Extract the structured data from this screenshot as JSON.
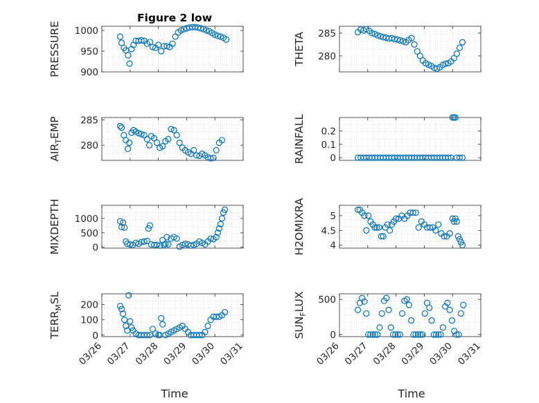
{
  "figure": {
    "title": "Figure 2 low"
  },
  "chart_data": [
    {
      "type": "scatter",
      "ylabel": "PRESSURE",
      "ylim": [
        900,
        1010
      ],
      "yticks": [
        900,
        950,
        1000
      ],
      "ytick_labels": [
        "900",
        "950",
        "1000"
      ],
      "xlim": [
        0,
        5
      ],
      "grid": true,
      "x": [
        0.65,
        0.7,
        0.78,
        0.85,
        0.93,
        0.98,
        1.05,
        1.12,
        1.2,
        1.3,
        1.4,
        1.5,
        1.6,
        1.7,
        1.8,
        1.9,
        2.0,
        2.1,
        2.2,
        2.3,
        2.4,
        2.5,
        2.6,
        2.7,
        2.8,
        2.9,
        3.0,
        3.1,
        3.2,
        3.3,
        3.4,
        3.5,
        3.6,
        3.7,
        3.8,
        3.9,
        4.0,
        4.1,
        4.2,
        4.3,
        4.4
      ],
      "y": [
        985,
        970,
        958,
        952,
        940,
        920,
        955,
        965,
        975,
        975,
        976,
        975,
        968,
        972,
        960,
        958,
        965,
        950,
        962,
        962,
        960,
        968,
        985,
        995,
        1000,
        1003,
        1005,
        1007,
        1008,
        1008,
        1007,
        1005,
        1003,
        1000,
        998,
        994,
        990,
        987,
        985,
        982,
        978
      ]
    },
    {
      "type": "scatter",
      "ylabel": "THETA",
      "ylim": [
        276.5,
        286.5
      ],
      "yticks": [
        280,
        285
      ],
      "ytick_labels": [
        "280",
        "285"
      ],
      "xlim": [
        0,
        5
      ],
      "grid": true,
      "x": [
        0.65,
        0.75,
        0.85,
        0.95,
        1.05,
        1.15,
        1.25,
        1.35,
        1.45,
        1.55,
        1.65,
        1.75,
        1.85,
        1.95,
        2.05,
        2.15,
        2.25,
        2.35,
        2.45,
        2.55,
        2.65,
        2.75,
        2.85,
        2.95,
        3.05,
        3.15,
        3.25,
        3.35,
        3.45,
        3.55,
        3.65,
        3.75,
        3.85,
        3.95,
        4.05,
        4.15,
        4.25,
        4.35
      ],
      "y": [
        285.2,
        285.8,
        285.6,
        285.9,
        285.5,
        285,
        284.8,
        284.5,
        284.3,
        284.1,
        284.0,
        283.8,
        283.9,
        283.7,
        283.6,
        283.4,
        283.2,
        283.0,
        283.5,
        283.9,
        282.5,
        281.0,
        280.0,
        279.0,
        278.4,
        278.1,
        277.8,
        277.4,
        277.2,
        277.5,
        278.0,
        278.3,
        278.4,
        278.8,
        279.5,
        280.5,
        281.8,
        283.0
      ]
    },
    {
      "type": "scatter",
      "ylabel": "AIR_TEMP",
      "ylim": [
        277,
        285.5
      ],
      "yticks": [
        280,
        285
      ],
      "ytick_labels": [
        "280",
        "285"
      ],
      "xlim": [
        0,
        5
      ],
      "grid": true,
      "x": [
        0.65,
        0.7,
        0.78,
        0.85,
        0.92,
        0.97,
        1.05,
        1.12,
        1.2,
        1.3,
        1.4,
        1.5,
        1.6,
        1.68,
        1.75,
        1.85,
        1.95,
        2.05,
        2.15,
        2.25,
        2.35,
        2.45,
        2.55,
        2.65,
        2.75,
        2.85,
        2.95,
        3.05,
        3.15,
        3.25,
        3.35,
        3.45,
        3.55,
        3.65,
        3.75,
        3.85,
        3.95,
        4.05,
        4.15,
        4.25
      ],
      "y": [
        283.8,
        283.5,
        282.0,
        281.0,
        279.3,
        280.5,
        282.5,
        283.0,
        282.7,
        282.4,
        282.2,
        282.0,
        281.2,
        280.0,
        281.8,
        281.4,
        280.5,
        279.5,
        279.8,
        280.8,
        281.2,
        283.2,
        283.0,
        282.0,
        280.5,
        279.5,
        279.0,
        278.6,
        278.3,
        279.0,
        278.0,
        277.9,
        278.3,
        278.0,
        277.6,
        277.4,
        277.5,
        279.0,
        280.5,
        281.0
      ]
    },
    {
      "type": "scatter",
      "ylabel": "RAINFALL",
      "ylim": [
        -0.02,
        0.3
      ],
      "yticks": [
        0,
        0.1,
        0.2
      ],
      "ytick_labels": [
        "0",
        "0.1",
        "0.2"
      ],
      "xlim": [
        0,
        5
      ],
      "grid": true,
      "x": [
        0.65,
        0.75,
        0.85,
        0.95,
        1.05,
        1.15,
        1.25,
        1.35,
        1.45,
        1.55,
        1.65,
        1.75,
        1.85,
        1.95,
        2.05,
        2.15,
        2.25,
        2.35,
        2.45,
        2.55,
        2.65,
        2.75,
        2.85,
        2.95,
        3.05,
        3.15,
        3.25,
        3.35,
        3.45,
        3.55,
        3.65,
        3.75,
        3.85,
        3.95,
        4.0,
        4.05,
        4.1,
        4.15,
        4.25,
        4.35
      ],
      "y": [
        0,
        0,
        0,
        0,
        0,
        0,
        0,
        0,
        0,
        0,
        0,
        0,
        0,
        0,
        0,
        0,
        0,
        0,
        0,
        0,
        0,
        0,
        0,
        0,
        0,
        0,
        0,
        0,
        0,
        0,
        0,
        0,
        0,
        0,
        0.3,
        0.3,
        0.3,
        0,
        0,
        0
      ]
    },
    {
      "type": "scatter",
      "ylabel": "MIXDEPTH",
      "ylim": [
        -30,
        1450
      ],
      "yticks": [
        0,
        500,
        1000
      ],
      "ytick_labels": [
        "0",
        "500",
        "1000"
      ],
      "xlim": [
        0,
        5
      ],
      "grid": true,
      "x": [
        0.65,
        0.7,
        0.75,
        0.8,
        0.85,
        0.9,
        1.0,
        1.1,
        1.2,
        1.3,
        1.4,
        1.5,
        1.6,
        1.65,
        1.7,
        1.75,
        1.85,
        1.95,
        2.05,
        2.15,
        2.2,
        2.25,
        2.3,
        2.35,
        2.45,
        2.55,
        2.65,
        2.75,
        2.85,
        2.95,
        3.05,
        3.15,
        3.25,
        3.35,
        3.45,
        3.55,
        3.65,
        3.75,
        3.85,
        3.95,
        4.05,
        4.1,
        4.15,
        4.2,
        4.25,
        4.3,
        4.35
      ],
      "y": [
        900,
        700,
        850,
        680,
        200,
        120,
        100,
        80,
        150,
        120,
        180,
        200,
        220,
        650,
        750,
        100,
        80,
        80,
        60,
        250,
        80,
        120,
        350,
        100,
        300,
        350,
        300,
        20,
        80,
        120,
        100,
        60,
        80,
        120,
        200,
        150,
        100,
        200,
        300,
        280,
        350,
        500,
        650,
        800,
        1000,
        1200,
        1300
      ]
    },
    {
      "type": "scatter",
      "ylabel": "H2OMIXRA",
      "ylim": [
        3.9,
        5.35
      ],
      "yticks": [
        4,
        4.5,
        5
      ],
      "ytick_labels": [
        "4",
        "4.5",
        "5"
      ],
      "xlim": [
        0,
        5
      ],
      "grid": true,
      "x": [
        0.65,
        0.72,
        0.8,
        0.88,
        0.95,
        1.02,
        1.1,
        1.18,
        1.25,
        1.32,
        1.4,
        1.48,
        1.55,
        1.62,
        1.7,
        1.78,
        1.85,
        1.92,
        2.0,
        2.1,
        2.2,
        2.3,
        2.4,
        2.5,
        2.6,
        2.7,
        2.8,
        2.9,
        3.0,
        3.1,
        3.2,
        3.3,
        3.4,
        3.5,
        3.6,
        3.7,
        3.8,
        3.9,
        4.0,
        4.05,
        4.1,
        4.15,
        4.2,
        4.25,
        4.3,
        4.35
      ],
      "y": [
        5.2,
        5.2,
        5.1,
        5.0,
        4.5,
        5.0,
        4.8,
        4.7,
        4.6,
        4.6,
        4.6,
        4.3,
        4.3,
        4.6,
        4.7,
        4.5,
        4.7,
        4.8,
        4.9,
        4.9,
        5.0,
        4.9,
        5.0,
        5.1,
        5.1,
        5.1,
        4.6,
        4.8,
        4.7,
        4.6,
        4.6,
        4.6,
        4.5,
        4.7,
        4.4,
        4.3,
        4.3,
        4.4,
        4.9,
        4.8,
        4.9,
        4.8,
        4.3,
        4.2,
        4.1,
        4.0
      ]
    },
    {
      "type": "scatter",
      "ylabel": "TERR_MSL",
      "ylim": [
        -10,
        270
      ],
      "yticks": [
        0,
        100,
        200
      ],
      "ytick_labels": [
        "0",
        "100",
        "200"
      ],
      "xlim": [
        0,
        5
      ],
      "grid": true,
      "x": [
        0.65,
        0.7,
        0.75,
        0.8,
        0.85,
        0.9,
        0.95,
        1.0,
        1.05,
        1.1,
        1.2,
        1.3,
        1.4,
        1.5,
        1.6,
        1.7,
        1.8,
        1.9,
        2.0,
        2.05,
        2.1,
        2.15,
        2.25,
        2.35,
        2.45,
        2.55,
        2.65,
        2.75,
        2.85,
        2.95,
        3.05,
        3.15,
        3.25,
        3.35,
        3.45,
        3.55,
        3.65,
        3.75,
        3.85,
        3.95,
        4.05,
        4.15,
        4.25,
        4.35
      ],
      "y": [
        190,
        170,
        140,
        100,
        60,
        30,
        260,
        90,
        50,
        30,
        10,
        0,
        0,
        0,
        0,
        0,
        40,
        10,
        0,
        0,
        110,
        70,
        0,
        10,
        20,
        30,
        40,
        50,
        60,
        40,
        20,
        0,
        0,
        0,
        0,
        0,
        20,
        60,
        100,
        120,
        120,
        120,
        130,
        150
      ]
    },
    {
      "type": "scatter",
      "ylabel": "SUN_FLUX",
      "ylim": [
        -30,
        580
      ],
      "yticks": [
        0,
        500
      ],
      "ytick_labels": [
        "0",
        "500"
      ],
      "xlim": [
        0,
        5
      ],
      "grid": true,
      "x": [
        0.65,
        0.72,
        0.8,
        0.88,
        0.95,
        1.02,
        1.1,
        1.18,
        1.26,
        1.34,
        1.42,
        1.5,
        1.58,
        1.66,
        1.74,
        1.82,
        1.9,
        1.98,
        2.06,
        2.14,
        2.22,
        2.3,
        2.38,
        2.46,
        2.54,
        2.62,
        2.7,
        2.78,
        2.86,
        2.94,
        3.02,
        3.1,
        3.18,
        3.26,
        3.34,
        3.42,
        3.5,
        3.58,
        3.66,
        3.74,
        3.82,
        3.9,
        3.98,
        4.06,
        4.14,
        4.22,
        4.3,
        4.38
      ],
      "y": [
        350,
        450,
        520,
        470,
        300,
        0,
        0,
        0,
        0,
        0,
        100,
        300,
        480,
        520,
        350,
        100,
        0,
        0,
        0,
        0,
        300,
        480,
        500,
        420,
        200,
        0,
        0,
        0,
        0,
        0,
        300,
        450,
        380,
        200,
        0,
        0,
        0,
        0,
        100,
        400,
        450,
        350,
        200,
        50,
        0,
        0,
        300,
        420
      ]
    }
  ],
  "x_axis": {
    "ticks": [
      0,
      1,
      2,
      3,
      4,
      5
    ],
    "tick_labels": [
      "03/26",
      "03/27",
      "03/28",
      "03/29",
      "03/30",
      "03/31"
    ],
    "label": "Time"
  }
}
